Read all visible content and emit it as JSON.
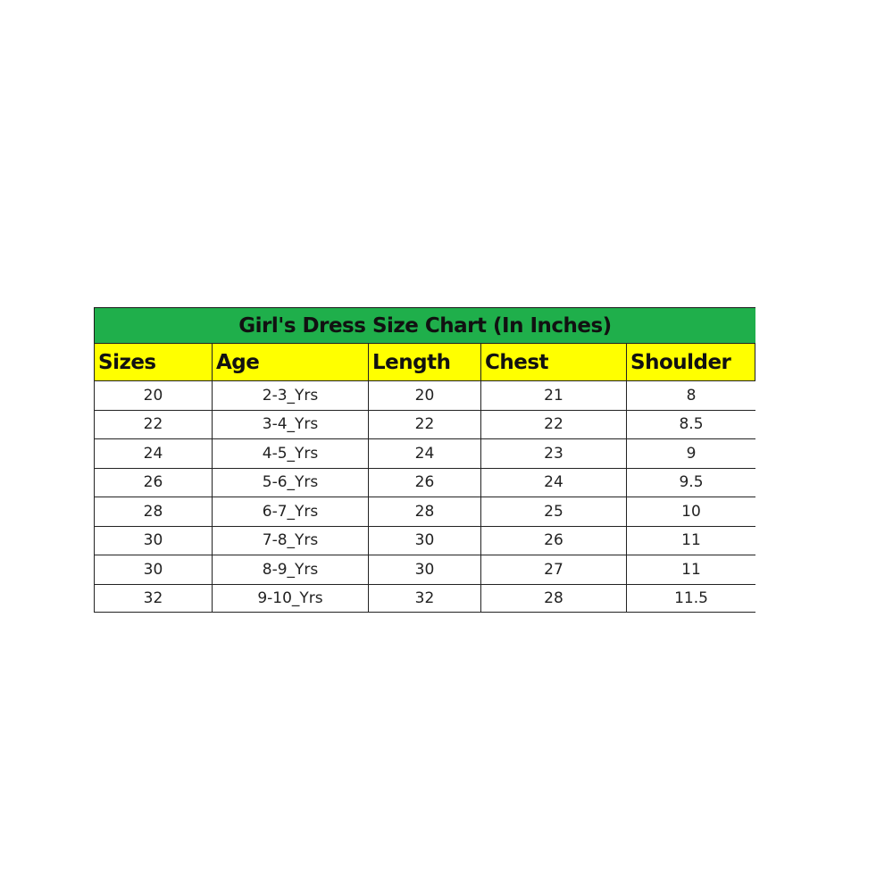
{
  "title": "Girl's Dress Size Chart (In Inches)",
  "colors": {
    "title_bg": "#1faf4b",
    "header_bg": "#ffff00"
  },
  "columns": [
    "Sizes",
    "Age",
    "Length",
    "Chest",
    "Shoulder"
  ],
  "rows": [
    [
      "20",
      "2-3_Yrs",
      "20",
      "21",
      "8"
    ],
    [
      "22",
      "3-4_Yrs",
      "22",
      "22",
      "8.5"
    ],
    [
      "24",
      "4-5_Yrs",
      "24",
      "23",
      "9"
    ],
    [
      "26",
      "5-6_Yrs",
      "26",
      "24",
      "9.5"
    ],
    [
      "28",
      "6-7_Yrs",
      "28",
      "25",
      "10"
    ],
    [
      "30",
      "7-8_Yrs",
      "30",
      "26",
      "11"
    ],
    [
      "30",
      "8-9_Yrs",
      "30",
      "27",
      "11"
    ],
    [
      "32",
      "9-10_Yrs",
      "32",
      "28",
      "11.5"
    ]
  ]
}
